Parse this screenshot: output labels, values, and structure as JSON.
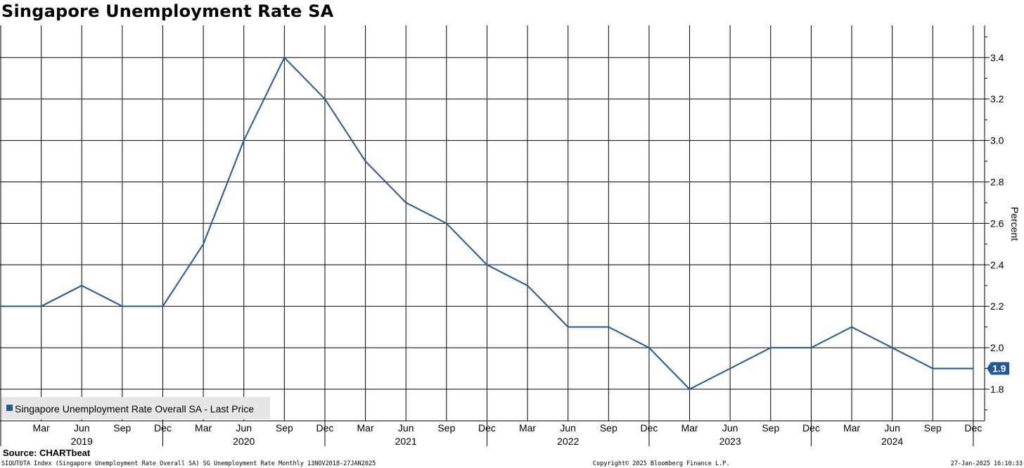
{
  "chart_data": {
    "type": "line",
    "title": "Singapore Unemployment Rate SA",
    "ylabel": "Percent",
    "ylim": [
      1.65,
      3.55
    ],
    "yticks": [
      1.8,
      2.0,
      2.2,
      2.4,
      2.6,
      2.8,
      3.0,
      3.2,
      3.4
    ],
    "grid": true,
    "legend_position": "bottom-left",
    "x": [
      "Dec 2018",
      "Mar 2019",
      "Jun 2019",
      "Sep 2019",
      "Dec 2019",
      "Mar 2020",
      "Jun 2020",
      "Sep 2020",
      "Dec 2020",
      "Mar 2021",
      "Jun 2021",
      "Sep 2021",
      "Dec 2021",
      "Mar 2022",
      "Jun 2022",
      "Sep 2022",
      "Dec 2022",
      "Mar 2023",
      "Jun 2023",
      "Sep 2023",
      "Dec 2023",
      "Mar 2024",
      "Jun 2024",
      "Sep 2024",
      "Dec 2024"
    ],
    "month_ticks": [
      "Mar",
      "Jun",
      "Sep",
      "Dec",
      "Mar",
      "Jun",
      "Sep",
      "Dec",
      "Mar",
      "Jun",
      "Sep",
      "Dec",
      "Mar",
      "Jun",
      "Sep",
      "Dec",
      "Mar",
      "Jun",
      "Sep",
      "Dec",
      "Mar",
      "Jun",
      "Sep",
      "Dec"
    ],
    "year_labels": [
      "2019",
      "2020",
      "2021",
      "2022",
      "2023",
      "2024"
    ],
    "series": [
      {
        "name": "Singapore Unemployment Rate Overall SA - Last Price",
        "color": "#1f5a96",
        "values": [
          2.2,
          2.2,
          2.3,
          2.2,
          2.2,
          2.5,
          3.0,
          3.4,
          3.2,
          2.9,
          2.7,
          2.6,
          2.4,
          2.3,
          2.1,
          2.1,
          2.0,
          1.8,
          1.9,
          2.0,
          2.0,
          2.1,
          2.0,
          1.9,
          1.9
        ]
      }
    ],
    "last_value_label": "1.9",
    "last_value_color": "#1f5a96"
  },
  "footer": {
    "source": "Source: CHARTbeat",
    "left": "SIQUTOTA Index (Singapore Unemployment Rate Overall SA) SG Unemployment Rate  Monthly 13NOV2018-27JAN2025",
    "center": "Copyright© 2025 Bloomberg Finance L.P.",
    "right": "27-Jan-2025 16:10:33"
  }
}
